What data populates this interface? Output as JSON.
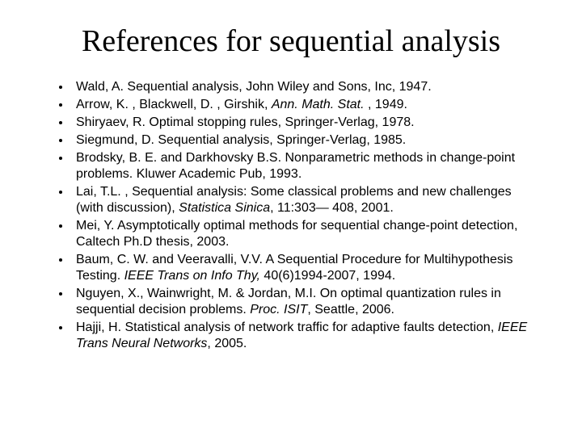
{
  "title": "References for sequential analysis",
  "title_fontsize": 38,
  "title_font_family": "Times New Roman",
  "body_fontsize": 16,
  "body_font_family": "Arial",
  "background_color": "#ffffff",
  "text_color": "#000000",
  "bullet_style": "disc",
  "references": [
    {
      "segments": [
        {
          "text": "Wald, A. Sequential analysis, John Wiley and Sons, Inc, 1947.",
          "italic": false
        }
      ]
    },
    {
      "segments": [
        {
          "text": "Arrow, K. , Blackwell, D. , Girshik, ",
          "italic": false
        },
        {
          "text": "Ann. Math. Stat.",
          "italic": true
        },
        {
          "text": " , 1949.",
          "italic": false
        }
      ]
    },
    {
      "segments": [
        {
          "text": "Shiryaev, R. Optimal stopping rules, Springer-Verlag, 1978.",
          "italic": false
        }
      ]
    },
    {
      "segments": [
        {
          "text": "Siegmund, D. Sequential analysis, Springer-Verlag, 1985.",
          "italic": false
        }
      ]
    },
    {
      "segments": [
        {
          "text": "Brodsky, B. E. and Darkhovsky B.S. Nonparametric methods in change-point problems. Kluwer Academic Pub, 1993.",
          "italic": false
        }
      ]
    },
    {
      "segments": [
        {
          "text": "Lai, T.L. , Sequential analysis: Some classical problems and new challenges (with discussion), ",
          "italic": false
        },
        {
          "text": "Statistica Sinica",
          "italic": true
        },
        {
          "text": ", 11:303— 408, 2001.",
          "italic": false
        }
      ]
    },
    {
      "segments": [
        {
          "text": "Mei, Y. Asymptotically optimal methods for sequential change-point detection, Caltech Ph.D thesis, 2003.",
          "italic": false
        }
      ]
    },
    {
      "segments": [
        {
          "text": "Baum, C. W. and Veeravalli, V.V. A Sequential Procedure for Multihypothesis Testing. ",
          "italic": false
        },
        {
          "text": "IEEE Trans on Info Thy,",
          "italic": true
        },
        {
          "text": " 40(6)1994-2007, 1994.",
          "italic": false
        }
      ]
    },
    {
      "segments": [
        {
          "text": "Nguyen, X., Wainwright, M. & Jordan, M.I. On optimal quantization rules in sequential decision problems. ",
          "italic": false
        },
        {
          "text": "Proc. ISIT",
          "italic": true
        },
        {
          "text": ", Seattle, 2006.",
          "italic": false
        }
      ]
    },
    {
      "segments": [
        {
          "text": "Hajji, H.  Statistical analysis of network traffic for adaptive faults detection, ",
          "italic": false
        },
        {
          "text": "IEEE Trans Neural Networks",
          "italic": true
        },
        {
          "text": ", 2005.",
          "italic": false
        }
      ]
    }
  ]
}
